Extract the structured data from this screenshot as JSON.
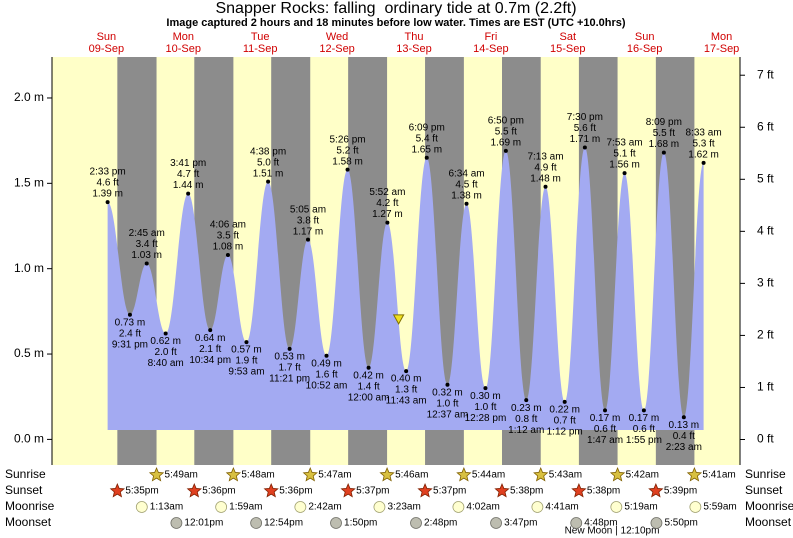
{
  "chart_data": {
    "type": "tide",
    "title": "Snapper Rocks: falling  ordinary tide at 0.7m (2.2ft)",
    "subtitle": "Image captured 2 hours and 18 minutes before low water. Times are EST (UTC +10.0hrs)",
    "days": [
      {
        "weekday": "Sun",
        "date": "09-Sep"
      },
      {
        "weekday": "Mon",
        "date": "10-Sep"
      },
      {
        "weekday": "Tue",
        "date": "11-Sep"
      },
      {
        "weekday": "Wed",
        "date": "12-Sep"
      },
      {
        "weekday": "Thu",
        "date": "13-Sep"
      },
      {
        "weekday": "Fri",
        "date": "14-Sep"
      },
      {
        "weekday": "Sat",
        "date": "15-Sep"
      },
      {
        "weekday": "Sun",
        "date": "16-Sep"
      },
      {
        "weekday": "Mon",
        "date": "17-Sep"
      }
    ],
    "tides": {
      "times": [
        "2:33 pm",
        "9:31 pm",
        "2:45 am",
        "8:40 am",
        "3:41 pm",
        "10:34 pm",
        "4:06 am",
        "9:53 am",
        "4:38 pm",
        "11:21 pm",
        "5:05 am",
        "10:52 am",
        "5:26 pm",
        "12:00 am",
        "5:52 am",
        "11:43 am",
        "6:09 pm",
        "12:37 am",
        "6:34 am",
        "12:28 pm",
        "6:50 pm",
        "1:12 am",
        "7:13 am",
        "1:12 pm",
        "7:30 pm",
        "1:47 am",
        "7:53 am",
        "1:55 pm",
        "8:09 pm",
        "2:23 am",
        "8:33 am"
      ],
      "feet_labels": [
        "4.6 ft",
        "2.4 ft",
        "3.4 ft",
        "2.0 ft",
        "4.7 ft",
        "2.1 ft",
        "3.5 ft",
        "1.9 ft",
        "5.0 ft",
        "1.7 ft",
        "3.8 ft",
        "1.6 ft",
        "5.2 ft",
        "1.4 ft",
        "4.2 ft",
        "1.3 ft",
        "5.4 ft",
        "1.0 ft",
        "4.5 ft",
        "1.0 ft",
        "5.5 ft",
        "0.8 ft",
        "4.9 ft",
        "0.7 ft",
        "5.6 ft",
        "0.6 ft",
        "5.1 ft",
        "0.6 ft",
        "5.5 ft",
        "0.4 ft",
        "5.3 ft"
      ],
      "values": [
        1.39,
        0.73,
        1.03,
        0.62,
        1.44,
        0.64,
        1.08,
        0.57,
        1.51,
        0.53,
        1.17,
        0.49,
        1.58,
        0.42,
        1.27,
        0.4,
        1.65,
        0.32,
        1.38,
        0.3,
        1.69,
        0.23,
        1.48,
        0.22,
        1.71,
        0.17,
        1.56,
        0.17,
        1.68,
        0.13,
        1.62
      ],
      "value_labels": [
        "1.39 m",
        "0.73 m",
        "1.03 m",
        "0.62 m",
        "1.44 m",
        "0.64 m",
        "1.08 m",
        "0.57 m",
        "1.51 m",
        "0.53 m",
        "1.17 m",
        "0.49 m",
        "1.58 m",
        "0.42 m",
        "1.27 m",
        "0.40 m",
        "1.65 m",
        "0.32 m",
        "1.38 m",
        "0.30 m",
        "1.69 m",
        "0.23 m",
        "1.48 m",
        "0.22 m",
        "1.71 m",
        "0.17 m",
        "1.56 m",
        "0.17 m",
        "1.68 m",
        "0.13 m",
        "1.62 m"
      ],
      "color": "#a3aaf2"
    },
    "current_level": 0.7,
    "ylim": [
      -0.15,
      2.24
    ],
    "yticks": [
      {
        "value": 0,
        "label": "0.0 m"
      },
      {
        "value": 0.5,
        "label": "0.5 m"
      },
      {
        "value": 1,
        "label": "1.0 m"
      },
      {
        "value": 1.5,
        "label": "1.5 m"
      },
      {
        "value": 2,
        "label": "2.0 m"
      }
    ],
    "y2lim": [
      -0.49,
      7.35
    ],
    "y2ticks": [
      {
        "value": 0,
        "label": "0 ft"
      },
      {
        "value": 1,
        "label": "1 ft"
      },
      {
        "value": 2,
        "label": "2 ft"
      },
      {
        "value": 3,
        "label": "3 ft"
      },
      {
        "value": 4,
        "label": "4 ft"
      },
      {
        "value": 5,
        "label": "5 ft"
      },
      {
        "value": 6,
        "label": "6 ft"
      },
      {
        "value": 7,
        "label": "7 ft"
      }
    ],
    "sun_moon": [
      {
        "label": "Sunrise",
        "kind": "sunrise",
        "times": [
          null,
          "5:49am",
          "5:48am",
          "5:47am",
          "5:46am",
          "5:44am",
          "5:43am",
          "5:42am",
          "5:41am"
        ]
      },
      {
        "label": "Sunset",
        "kind": "sunset",
        "times": [
          "5:35pm",
          "5:36pm",
          "5:36pm",
          "5:37pm",
          "5:37pm",
          "5:38pm",
          "5:38pm",
          "5:39pm",
          null
        ]
      },
      {
        "label": "Moonrise",
        "kind": "moonrise",
        "times": [
          null,
          "1:13am",
          "1:59am",
          "2:42am",
          "3:23am",
          "4:02am",
          "4:41am",
          "5:19am",
          "5:59am"
        ]
      },
      {
        "label": "Moonset",
        "kind": "moonset",
        "times": [
          null,
          "12:01pm",
          "12:54pm",
          "1:50pm",
          "2:48pm",
          "3:47pm",
          "4:48pm",
          "5:50pm",
          null
        ]
      }
    ],
    "moon_phase": "New Moon | 12:10pm"
  }
}
